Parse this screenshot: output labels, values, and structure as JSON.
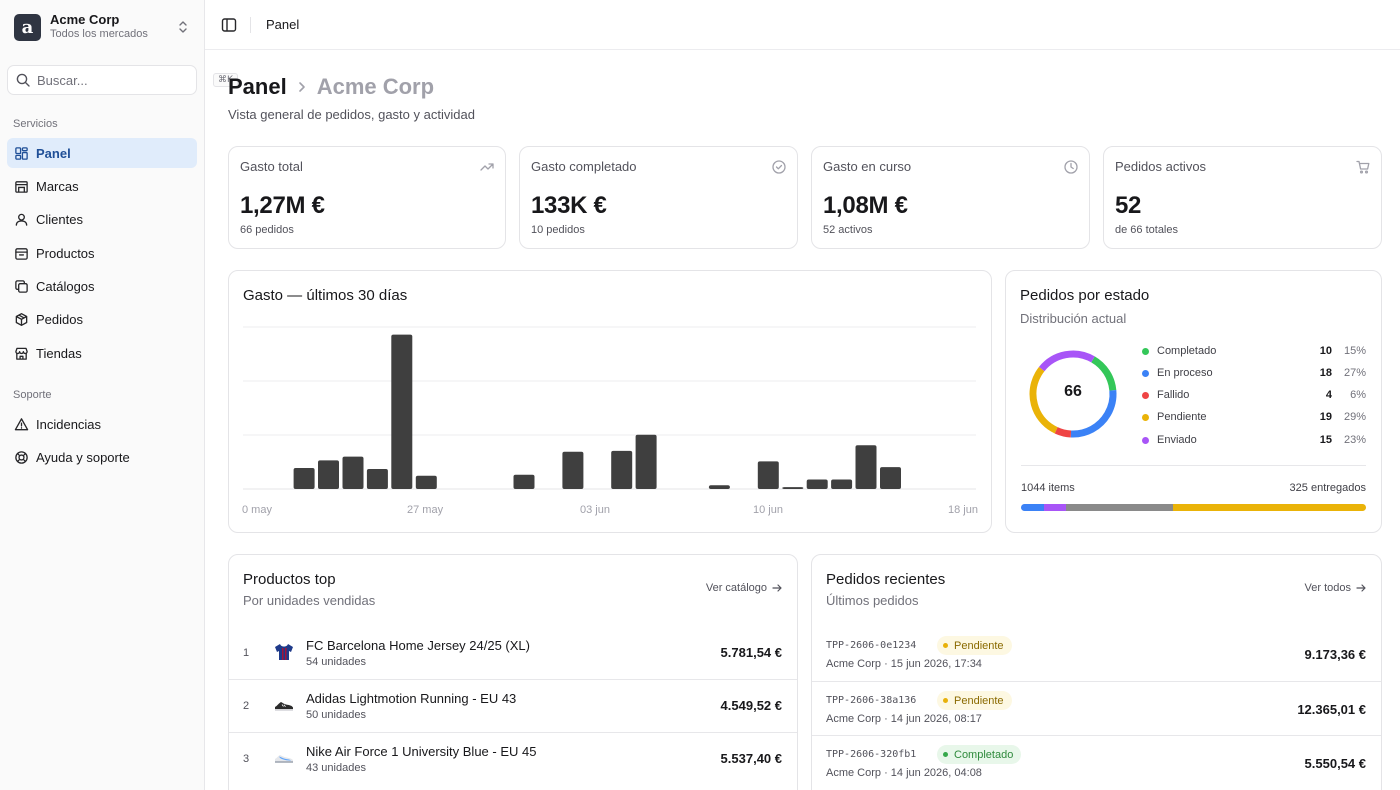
{
  "sidebar": {
    "brand_letter": "a",
    "brand_name": "Acme Corp",
    "brand_sub": "Todos los mercados",
    "search_placeholder": "Buscar...",
    "search_shortcut": "⌘K",
    "services_label": "Servicios",
    "items": [
      {
        "label": "Panel",
        "icon": "dashboard-icon",
        "active": true
      },
      {
        "label": "Marcas",
        "icon": "store-icon"
      },
      {
        "label": "Clientes",
        "icon": "user-icon"
      },
      {
        "label": "Productos",
        "icon": "box-icon"
      },
      {
        "label": "Catálogos",
        "icon": "copy-icon"
      },
      {
        "label": "Pedidos",
        "icon": "package-icon"
      },
      {
        "label": "Tiendas",
        "icon": "shop-icon"
      }
    ],
    "support_label": "Soporte",
    "support_items": [
      {
        "label": "Incidencias",
        "icon": "alert-triangle-icon"
      },
      {
        "label": "Ayuda y soporte",
        "icon": "lifebuoy-icon"
      }
    ]
  },
  "topbar": {
    "title": "Panel"
  },
  "header": {
    "title": "Panel",
    "subtitle": "Acme Corp",
    "description": "Vista general de pedidos, gasto y actividad"
  },
  "stats": [
    {
      "title": "Gasto total",
      "value": "1,27M €",
      "sub": "66 pedidos",
      "icon": "trending-up-icon"
    },
    {
      "title": "Gasto completado",
      "value": "133K €",
      "sub": "10 pedidos",
      "icon": "check-circle-icon"
    },
    {
      "title": "Gasto en curso",
      "value": "1,08M €",
      "sub": "52 activos",
      "icon": "clock-icon"
    },
    {
      "title": "Pedidos activos",
      "value": "52",
      "sub": "de 66 totales",
      "icon": "cart-icon"
    }
  ],
  "spend_chart": {
    "title": "Gasto — últimos 30 días",
    "x_ticks": [
      "0 may",
      "27 may",
      "03 jun",
      "10 jun",
      "18 jun"
    ]
  },
  "chart_data": {
    "type": "bar",
    "x": [
      "20 may",
      "21 may",
      "22 may",
      "23 may",
      "24 may",
      "25 may",
      "26 may",
      "27 may",
      "28 may",
      "29 may",
      "30 may",
      "31 may",
      "01 jun",
      "02 jun",
      "03 jun",
      "04 jun",
      "05 jun",
      "06 jun",
      "07 jun",
      "08 jun",
      "09 jun",
      "10 jun",
      "11 jun",
      "12 jun",
      "13 jun",
      "14 jun",
      "15 jun",
      "16 jun",
      "17 jun",
      "18 jun"
    ],
    "values": [
      0,
      0,
      22,
      30,
      34,
      21,
      162,
      14,
      0,
      0,
      0,
      15,
      0,
      39,
      0,
      40,
      57,
      0,
      0,
      4,
      0,
      29,
      2,
      10,
      10,
      46,
      23,
      0,
      0,
      0
    ],
    "x_ticks": [
      "0 may",
      "27 may",
      "03 jun",
      "10 jun",
      "18 jun"
    ],
    "grid": "horizontal",
    "color": "#3f3f3f",
    "ylim": [
      0,
      170
    ]
  },
  "status": {
    "title": "Pedidos por estado",
    "subtitle": "Distribución actual",
    "total": "66",
    "items": [
      {
        "name": "Completado",
        "count": "10",
        "pct": "15%",
        "color": "#34c759"
      },
      {
        "name": "En proceso",
        "count": "18",
        "pct": "27%",
        "color": "#3b82f6"
      },
      {
        "name": "Fallido",
        "count": "4",
        "pct": "6%",
        "color": "#ef4444"
      },
      {
        "name": "Pendiente",
        "count": "19",
        "pct": "29%",
        "color": "#eab308"
      },
      {
        "name": "Enviado",
        "count": "15",
        "pct": "23%",
        "color": "#a855f7"
      }
    ],
    "items_label": "1044 items",
    "delivered_label": "325 entregados",
    "progress": [
      {
        "share": 0.067,
        "color": "#3b82f6"
      },
      {
        "share": 0.063,
        "color": "#a855f7"
      },
      {
        "share": 0.31,
        "color": "#8a8a8a"
      },
      {
        "share": 0.56,
        "color": "#eab308"
      }
    ]
  },
  "top_products": {
    "title": "Productos top",
    "subtitle": "Por unidades vendidas",
    "link": "Ver catálogo",
    "items": [
      {
        "rank": "1",
        "name": "FC Barcelona Home Jersey 24/25 (XL)",
        "units": "54 unidades",
        "value": "5.781,54 €",
        "thumb": "jersey-icon"
      },
      {
        "rank": "2",
        "name": "Adidas Lightmotion Running - EU 43",
        "units": "50 unidades",
        "value": "4.549,52 €",
        "thumb": "shoe-icon"
      },
      {
        "rank": "3",
        "name": "Nike Air Force 1 University Blue - EU 45",
        "units": "43 unidades",
        "value": "5.537,40 €",
        "thumb": "sneaker-icon"
      }
    ]
  },
  "recent_orders": {
    "title": "Pedidos recientes",
    "subtitle": "Últimos pedidos",
    "link": "Ver todos",
    "items": [
      {
        "id": "TPP-2606-0e1234",
        "status": "Pendiente",
        "kind": "pending",
        "meta": "Acme Corp · 15 jun 2026, 17:34",
        "value": "9.173,36 €"
      },
      {
        "id": "TPP-2606-38a136",
        "status": "Pendiente",
        "kind": "pending",
        "meta": "Acme Corp · 14 jun 2026, 08:17",
        "value": "12.365,01 €"
      },
      {
        "id": "TPP-2606-320fb1",
        "status": "Completado",
        "kind": "done",
        "meta": "Acme Corp · 14 jun 2026, 04:08",
        "value": "5.550,54 €"
      }
    ]
  }
}
